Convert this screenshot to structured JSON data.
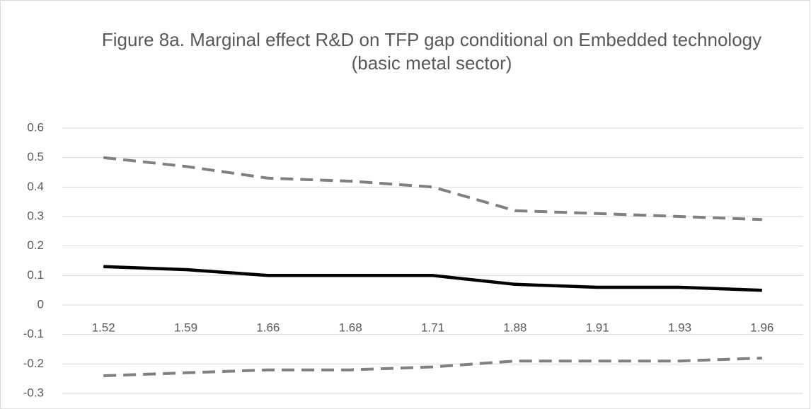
{
  "chart_data": {
    "type": "line",
    "title": "Figure 8a. Marginal effect R&D on TFP gap conditional on Embedded technology",
    "subtitle": "(basic metal sector)",
    "categories": [
      "1.52",
      "1.59",
      "1.66",
      "1.68",
      "1.71",
      "1.88",
      "1.91",
      "1.93",
      "1.96"
    ],
    "series": [
      {
        "color": "#808080",
        "dashed": true,
        "values": [
          0.5,
          0.47,
          0.43,
          0.42,
          0.4,
          0.32,
          0.31,
          0.3,
          0.29
        ]
      },
      {
        "color": "#000000",
        "dashed": false,
        "values": [
          0.13,
          0.12,
          0.1,
          0.1,
          0.1,
          0.07,
          0.06,
          0.06,
          0.05
        ]
      },
      {
        "color": "#808080",
        "dashed": true,
        "values": [
          -0.24,
          -0.23,
          -0.22,
          -0.22,
          -0.21,
          -0.19,
          -0.19,
          -0.19,
          -0.18
        ]
      }
    ],
    "ylim": [
      -0.3,
      0.6
    ],
    "yticks": [
      -0.3,
      -0.2,
      -0.1,
      0,
      0.1,
      0.2,
      0.3,
      0.4,
      0.5,
      0.6
    ],
    "grid": true
  }
}
